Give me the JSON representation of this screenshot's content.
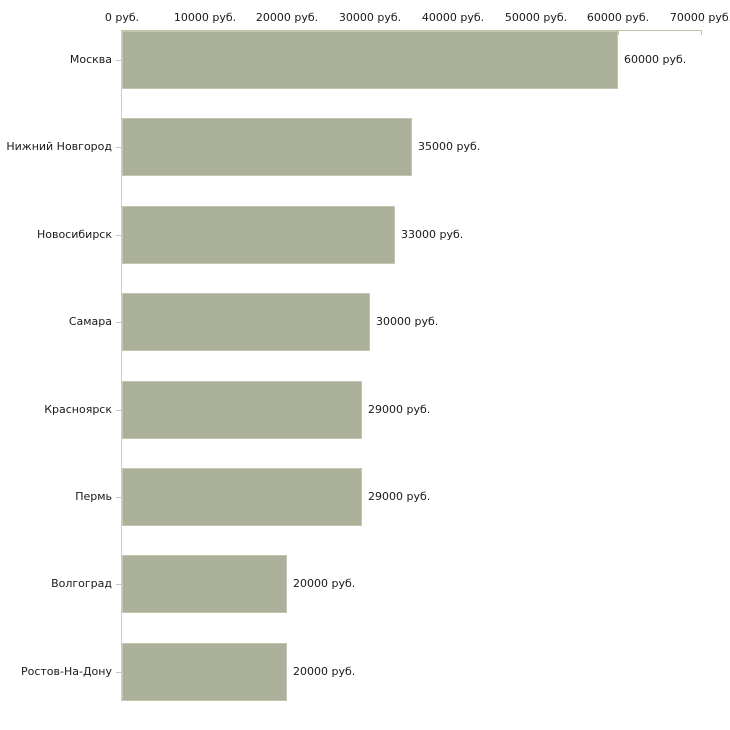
{
  "chart_data": {
    "type": "bar",
    "orientation": "horizontal",
    "title": "",
    "xlabel": "",
    "ylabel": "",
    "unit_suffix": " руб.",
    "categories": [
      "Москва",
      "Нижний Новгород",
      "Новосибирск",
      "Самара",
      "Красноярск",
      "Пермь",
      "Волгоград",
      "Ростов-На-Дону"
    ],
    "values": [
      60000,
      35000,
      33000,
      30000,
      29000,
      29000,
      20000,
      20000
    ],
    "value_labels": [
      "60000 руб.",
      "35000 руб.",
      "33000 руб.",
      "30000 руб.",
      "29000 руб.",
      "29000 руб.",
      "20000 руб.",
      "20000 руб."
    ],
    "xlim": [
      0,
      70000
    ],
    "x_ticks": [
      0,
      10000,
      20000,
      30000,
      40000,
      50000,
      60000,
      70000
    ],
    "x_tick_labels": [
      "0 руб.",
      "10000 руб.",
      "20000 руб.",
      "30000 руб.",
      "40000 руб.",
      "50000 руб.",
      "60000 руб.",
      "70000 руб."
    ],
    "grid": false,
    "legend": "none",
    "bar_color": "#abb198",
    "bar_border_color": "#c3c6b2",
    "axis_color": "#c2c2a2",
    "y_axis_color": "#cccccc",
    "text_color": "#1a1a1a",
    "background_color": "#ffffff"
  }
}
